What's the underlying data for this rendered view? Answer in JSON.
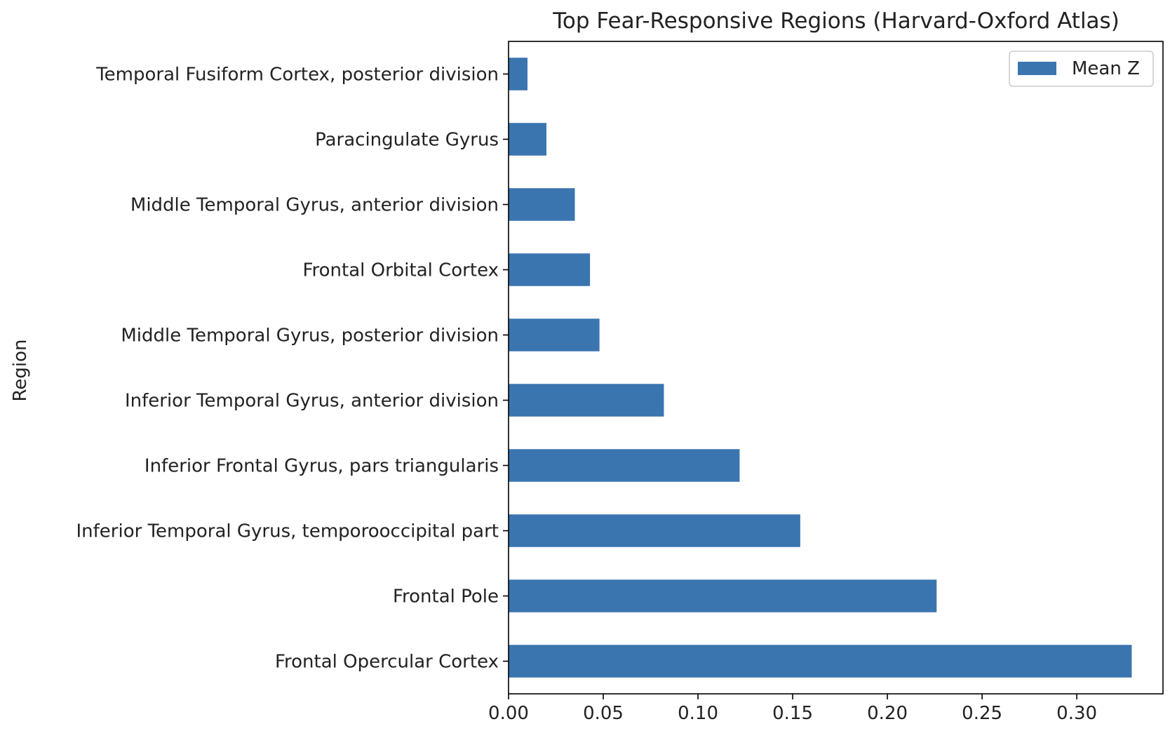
{
  "chart_data": {
    "type": "bar",
    "orientation": "horizontal",
    "title": "Top Fear-Responsive Regions (Harvard-Oxford Atlas)",
    "xlabel": "",
    "ylabel": "Region",
    "categories": [
      "Frontal Opercular Cortex",
      "Frontal Pole",
      "Inferior Temporal Gyrus, temporooccipital part",
      "Inferior Frontal Gyrus, pars triangularis",
      "Inferior Temporal Gyrus, anterior division",
      "Middle Temporal Gyrus, posterior division",
      "Frontal Orbital Cortex",
      "Middle Temporal Gyrus, anterior division",
      "Paracingulate Gyrus",
      "Temporal Fusiform Cortex, posterior division"
    ],
    "series": [
      {
        "name": "Mean Z",
        "values": [
          0.329,
          0.226,
          0.154,
          0.122,
          0.082,
          0.048,
          0.043,
          0.035,
          0.02,
          0.01
        ],
        "color": "#3a75af"
      }
    ],
    "xlim": [
      0,
      0.3455
    ],
    "xticks": [
      "0.00",
      "0.05",
      "0.10",
      "0.15",
      "0.20",
      "0.25",
      "0.30"
    ],
    "tick_values": [
      0,
      0.05,
      0.1,
      0.15,
      0.2,
      0.25,
      0.3
    ],
    "grid": false,
    "legend_position": "top-right"
  }
}
